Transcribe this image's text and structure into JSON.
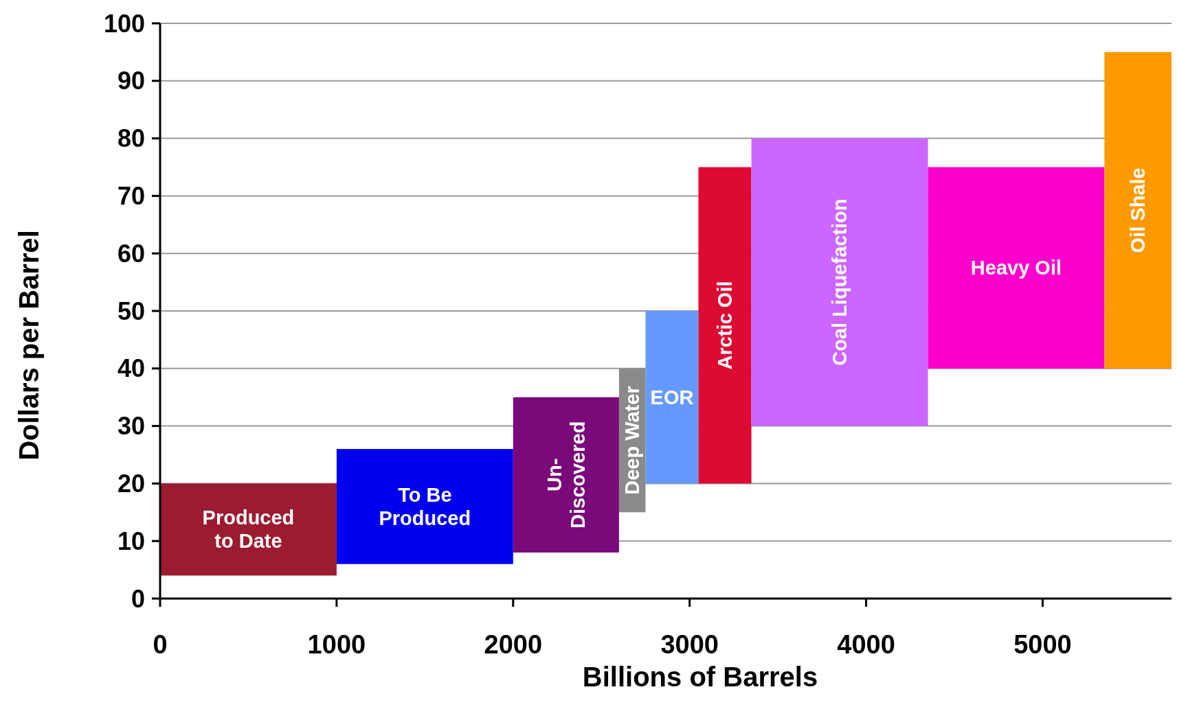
{
  "chart_data": {
    "type": "histogram",
    "xlabel": "Billions of Barrels",
    "ylabel": "Dollars per Barrel",
    "categories": [
      "Produced\nto Date",
      "To Be\nProduced",
      "Un-\nDiscovered",
      "Deep Water",
      "EOR",
      "Arctic Oil",
      "Coal Liquefaction",
      "Heavy Oil",
      "Oil Shale"
    ],
    "bins": [
      0,
      1000,
      2000,
      2600,
      2750,
      3050,
      3350,
      4350,
      5350,
      5730
    ],
    "base": [
      4,
      6,
      8,
      15,
      20,
      20,
      30,
      40,
      40
    ],
    "values": [
      16,
      20,
      27,
      25,
      30,
      55,
      50,
      35,
      55
    ],
    "colors": [
      "#9b1b30",
      "#0000ee",
      "#7a0a7a",
      "#8a8a8a",
      "#6699ff",
      "#dd0a33",
      "#cc66ff",
      "#ff00cc",
      "#ff9900"
    ],
    "xlim": [
      0,
      5730
    ],
    "xticks": [
      0,
      1000,
      2000,
      3000,
      4000,
      5000
    ],
    "ylim": [
      0,
      100
    ],
    "yticks": [
      0,
      10,
      20,
      30,
      40,
      50,
      60,
      70,
      80,
      90,
      100
    ],
    "grid": "y"
  }
}
